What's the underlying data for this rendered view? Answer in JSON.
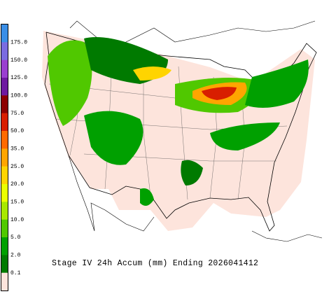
{
  "title": "Stage IV 24h Accum (mm) Ending 2026041412",
  "legend": {
    "labels": [
      "175.0",
      "150.0",
      "125.0",
      "100.0",
      "75.0",
      "50.0",
      "35.0",
      "25.0",
      "20.0",
      "15.0",
      "10.0",
      "5.0",
      "2.0",
      "0.1"
    ],
    "colors": [
      "#3a8ee6",
      "#7a6ce0",
      "#9a3fd0",
      "#6e1aa0",
      "#8c0000",
      "#d81e00",
      "#ff6a00",
      "#ffa500",
      "#ffd400",
      "#eaff00",
      "#a8e800",
      "#50c800",
      "#00a000",
      "#007a00",
      "#fde4dc"
    ]
  }
}
